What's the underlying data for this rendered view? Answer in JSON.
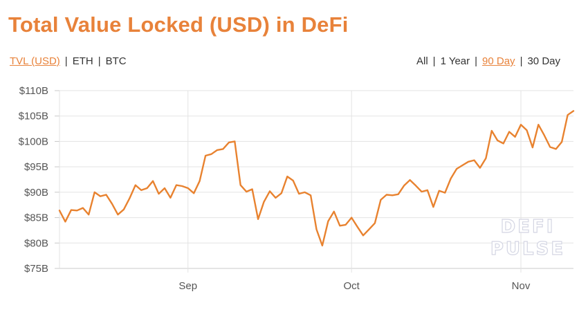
{
  "title": "Total Value Locked (USD) in DeFi",
  "metric_tabs": [
    {
      "label": "TVL (USD)",
      "active": true
    },
    {
      "label": "ETH",
      "active": false
    },
    {
      "label": "BTC",
      "active": false
    }
  ],
  "range_tabs": [
    {
      "label": "All",
      "active": false
    },
    {
      "label": "1 Year",
      "active": false
    },
    {
      "label": "90 Day",
      "active": true
    },
    {
      "label": "30 Day",
      "active": false
    }
  ],
  "separator": "|",
  "watermark": [
    "DEFI",
    "PULSE"
  ],
  "colors": {
    "accent": "#e8823a",
    "line": "#e8822f",
    "grid": "#e3e3e3",
    "text": "#333333"
  },
  "chart_data": {
    "type": "line",
    "title": "Total Value Locked (USD) in DeFi",
    "xlabel": "",
    "ylabel": "",
    "ylim": [
      75,
      110
    ],
    "y_ticks": [
      {
        "value": 110,
        "label": "$110B"
      },
      {
        "value": 105,
        "label": "$105B"
      },
      {
        "value": 100,
        "label": "$100B"
      },
      {
        "value": 95,
        "label": "$95B"
      },
      {
        "value": 90,
        "label": "$90B"
      },
      {
        "value": 85,
        "label": "$85B"
      },
      {
        "value": 80,
        "label": "$80B"
      },
      {
        "value": 75,
        "label": "$75B"
      }
    ],
    "x_ticks": [
      {
        "index": 22,
        "label": "Sep"
      },
      {
        "index": 50,
        "label": "Oct"
      },
      {
        "index": 79,
        "label": "Nov"
      }
    ],
    "grid": true,
    "legend": "none",
    "series": [
      {
        "values": [
          86.4,
          84.2,
          86.5,
          86.4,
          86.9,
          85.6,
          90.0,
          89.2,
          89.5,
          87.7,
          85.6,
          86.6,
          88.8,
          91.4,
          90.4,
          90.8,
          92.2,
          89.7,
          90.8,
          88.9,
          91.4,
          91.2,
          90.8,
          89.8,
          92.2,
          97.2,
          97.5,
          98.3,
          98.5,
          99.8,
          100.0,
          91.4,
          90.1,
          90.6,
          84.7,
          88.1,
          90.2,
          88.9,
          89.8,
          93.1,
          92.3,
          89.7,
          90.0,
          89.4,
          82.7,
          79.5,
          84.3,
          86.2,
          83.4,
          83.6,
          85.0,
          83.2,
          81.5,
          82.7,
          83.9,
          88.5,
          89.5,
          89.4,
          89.6,
          91.3,
          92.4,
          91.3,
          90.1,
          90.4,
          87.1,
          90.3,
          89.9,
          92.7,
          94.6,
          95.3,
          96.0,
          96.3,
          94.8,
          96.7,
          102.1,
          100.2,
          99.6,
          101.9,
          100.9,
          103.3,
          102.2,
          98.8,
          103.3,
          101.2,
          98.9,
          98.5,
          99.9,
          105.2,
          106.0
        ]
      }
    ]
  }
}
